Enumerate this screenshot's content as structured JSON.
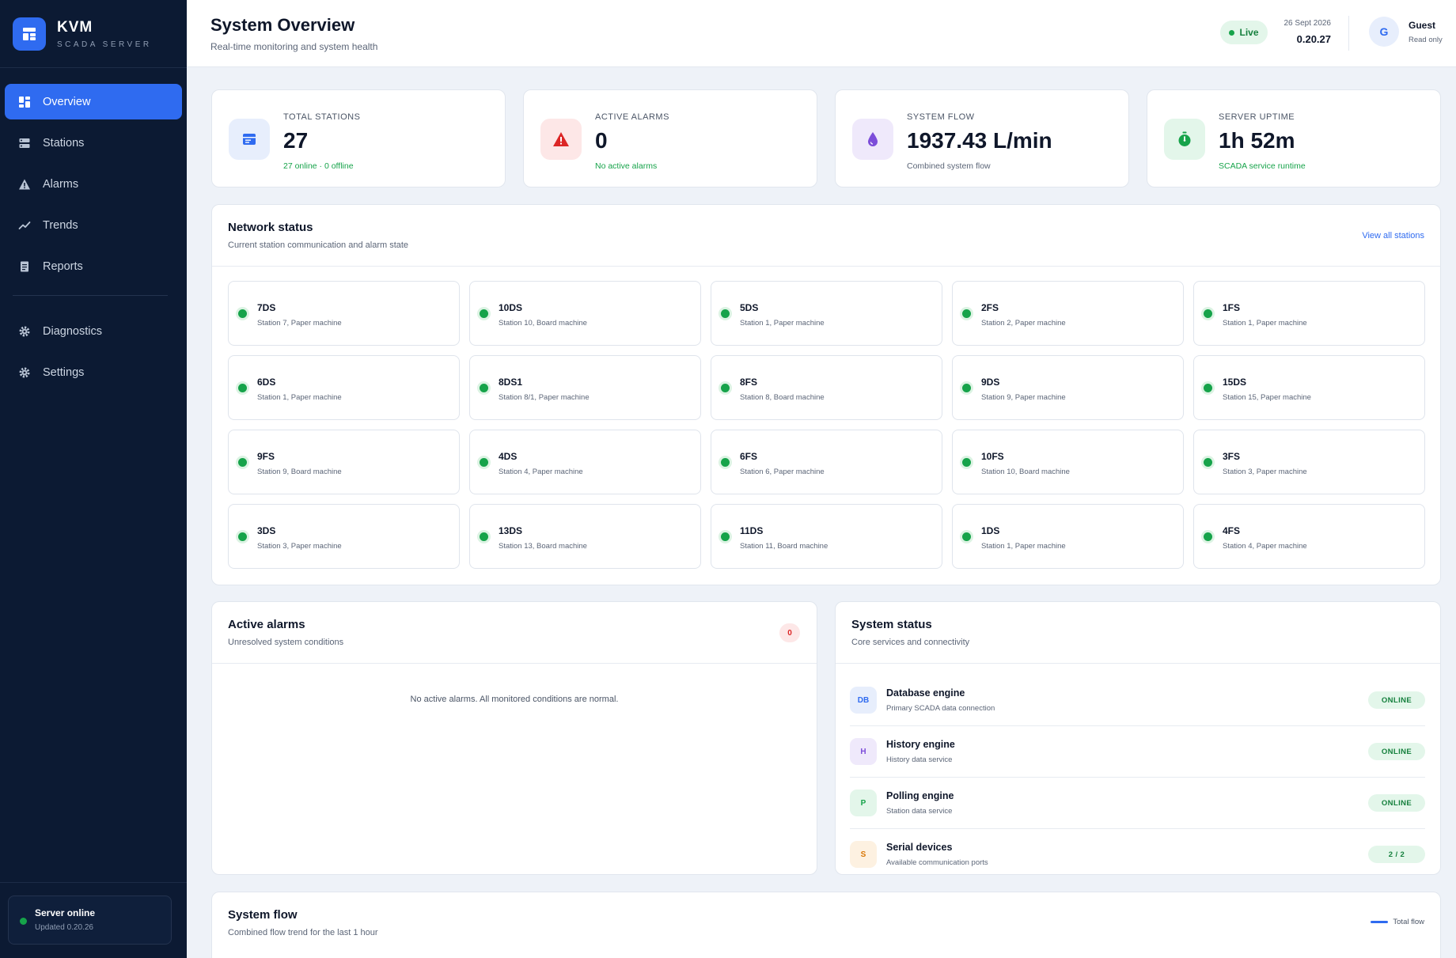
{
  "brand": {
    "title": "KVM",
    "subtitle": "SCADA SERVER"
  },
  "nav": {
    "items": [
      {
        "label": "Overview",
        "icon": "grid-icon"
      },
      {
        "label": "Stations",
        "icon": "server-icon"
      },
      {
        "label": "Alarms",
        "icon": "warning-icon"
      },
      {
        "label": "Trends",
        "icon": "trend-icon"
      },
      {
        "label": "Reports",
        "icon": "document-icon"
      }
    ],
    "secondary": [
      {
        "label": "Diagnostics",
        "icon": "gear-icon"
      },
      {
        "label": "Settings",
        "icon": "gear-icon"
      }
    ],
    "active": "Overview"
  },
  "server_status": {
    "title": "Server online",
    "updated": "Updated 0.20.26"
  },
  "header": {
    "title": "System Overview",
    "subtitle": "Real-time monitoring and system health",
    "live": "Live",
    "date": "26 Sept 2026",
    "time": "0.20.27",
    "user": {
      "initial": "G",
      "name": "Guest",
      "role": "Read only"
    }
  },
  "stats": [
    {
      "label": "TOTAL STATIONS",
      "value": "27",
      "note": "27 online · 0 offline",
      "icon": "server-icon",
      "note_color": "#16a34a"
    },
    {
      "label": "ACTIVE ALARMS",
      "value": "0",
      "note": "No active alarms",
      "icon": "warning-icon",
      "note_color": "#16a34a"
    },
    {
      "label": "SYSTEM FLOW",
      "value": "1937.43 L/min",
      "note": "Combined system flow",
      "icon": "droplet-icon",
      "note_color": "#5b6577"
    },
    {
      "label": "SERVER UPTIME",
      "value": "1h 52m",
      "note": "SCADA service runtime",
      "icon": "timer-icon",
      "note_color": "#16a34a"
    }
  ],
  "network": {
    "title": "Network status",
    "subtitle": "Current station communication and alarm state",
    "view_all": "View all stations",
    "stations": [
      {
        "name": "7DS",
        "desc": "Station 7, Paper machine"
      },
      {
        "name": "10DS",
        "desc": "Station 10, Board machine"
      },
      {
        "name": "5DS",
        "desc": "Station 1, Paper machine"
      },
      {
        "name": "2FS",
        "desc": "Station 2, Paper machine"
      },
      {
        "name": "1FS",
        "desc": "Station 1, Paper machine"
      },
      {
        "name": "6DS",
        "desc": "Station 1, Paper machine"
      },
      {
        "name": "8DS1",
        "desc": "Station 8/1, Paper machine"
      },
      {
        "name": "8FS",
        "desc": "Station 8, Board machine"
      },
      {
        "name": "9DS",
        "desc": "Station 9, Paper machine"
      },
      {
        "name": "15DS",
        "desc": "Station 15, Paper machine"
      },
      {
        "name": "9FS",
        "desc": "Station 9, Board machine"
      },
      {
        "name": "4DS",
        "desc": "Station 4, Paper machine"
      },
      {
        "name": "6FS",
        "desc": "Station 6, Paper machine"
      },
      {
        "name": "10FS",
        "desc": "Station 10, Board machine"
      },
      {
        "name": "3FS",
        "desc": "Station 3, Paper machine"
      },
      {
        "name": "3DS",
        "desc": "Station 3, Paper machine"
      },
      {
        "name": "13DS",
        "desc": "Station 13, Board machine"
      },
      {
        "name": "11DS",
        "desc": "Station 11, Board machine"
      },
      {
        "name": "1DS",
        "desc": "Station 1, Paper machine"
      },
      {
        "name": "4FS",
        "desc": "Station 4, Paper machine"
      }
    ]
  },
  "alarms": {
    "title": "Active alarms",
    "subtitle": "Unresolved system conditions",
    "count": "0",
    "empty": "No active alarms. All monitored conditions are normal."
  },
  "system_status": {
    "title": "System status",
    "subtitle": "Core services and connectivity",
    "services": [
      {
        "abbr": "DB",
        "name": "Database engine",
        "desc": "Primary SCADA data connection",
        "status": "ONLINE",
        "bg": "#e7eefc",
        "fg": "#2f6bf0"
      },
      {
        "abbr": "H",
        "name": "History engine",
        "desc": "History data service",
        "status": "ONLINE",
        "bg": "#efe9fb",
        "fg": "#7c4dd9"
      },
      {
        "abbr": "P",
        "name": "Polling engine",
        "desc": "Station data service",
        "status": "ONLINE",
        "bg": "#e3f6ea",
        "fg": "#16a34a"
      },
      {
        "abbr": "S",
        "name": "Serial devices",
        "desc": "Available communication ports",
        "status": "2 / 2",
        "bg": "#fdf1e1",
        "fg": "#d97706"
      }
    ]
  },
  "flow": {
    "title": "System flow",
    "subtitle": "Combined flow trend for the last 1 hour",
    "legend": "Total flow"
  },
  "colors": {
    "accent": "#2f6bf0",
    "sidebar": "#0c1a33",
    "online": "#16a34a",
    "alarm": "#dc2626"
  }
}
